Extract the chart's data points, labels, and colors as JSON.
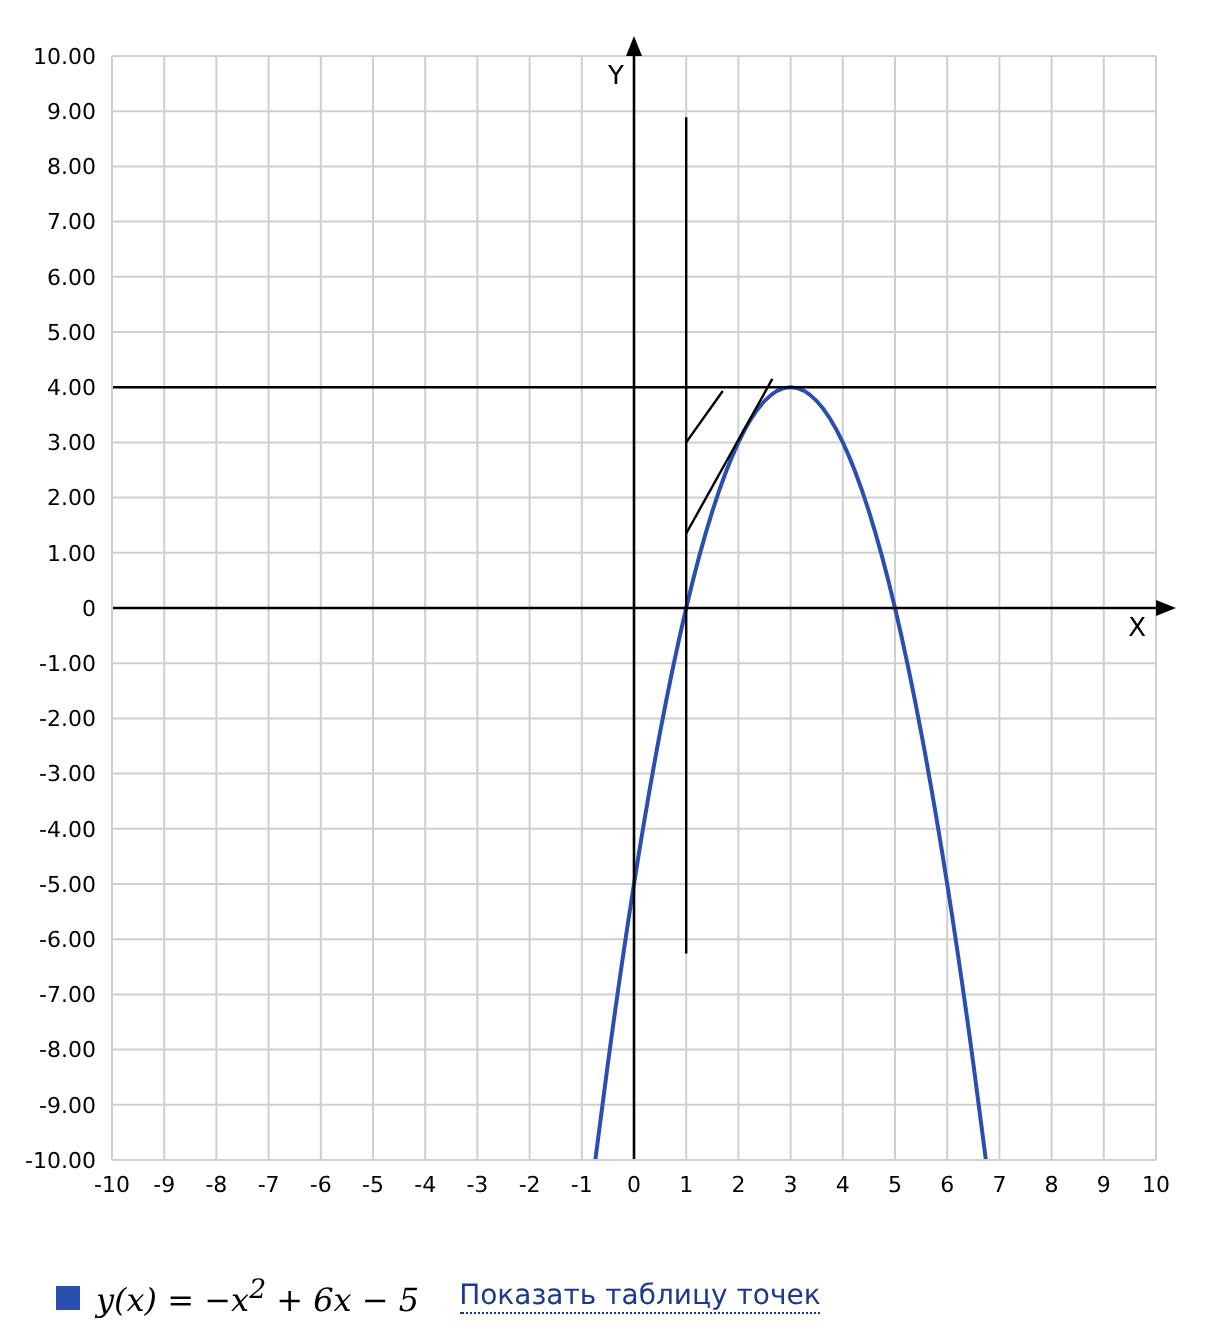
{
  "chart_data": {
    "type": "line",
    "xlabel": "X",
    "ylabel": "Y",
    "xlim": [
      -10,
      10
    ],
    "ylim": [
      -10,
      10
    ],
    "xticks": [
      -10,
      -9,
      -8,
      -7,
      -6,
      -5,
      -4,
      -3,
      -2,
      -1,
      0,
      1,
      2,
      3,
      4,
      5,
      6,
      7,
      8,
      9,
      10
    ],
    "yticks": [
      {
        "value": -10,
        "label": "-10.00"
      },
      {
        "value": -9,
        "label": "-9.00"
      },
      {
        "value": -8,
        "label": "-8.00"
      },
      {
        "value": -7,
        "label": "-7.00"
      },
      {
        "value": -6,
        "label": "-6.00"
      },
      {
        "value": -5,
        "label": "-5.00"
      },
      {
        "value": -4,
        "label": "-4.00"
      },
      {
        "value": -3,
        "label": "-3.00"
      },
      {
        "value": -2,
        "label": "-2.00"
      },
      {
        "value": -1,
        "label": "-1.00"
      },
      {
        "value": 0,
        "label": "0"
      },
      {
        "value": 1,
        "label": "1.00"
      },
      {
        "value": 2,
        "label": "2.00"
      },
      {
        "value": 3,
        "label": "3.00"
      },
      {
        "value": 4,
        "label": "4.00"
      },
      {
        "value": 5,
        "label": "5.00"
      },
      {
        "value": 6,
        "label": "6.00"
      },
      {
        "value": 7,
        "label": "7.00"
      },
      {
        "value": 8,
        "label": "8.00"
      },
      {
        "value": 9,
        "label": "9.00"
      },
      {
        "value": 10,
        "label": "10.00"
      }
    ],
    "grid": true,
    "legend": "bottom",
    "marker": "none",
    "series": [
      {
        "name": "y(x) = −x$^{2}$ + 6x − 5",
        "color": "#2b4fb0",
        "x": [
          -0.74,
          -0.5,
          0,
          0.5,
          1,
          1.5,
          2,
          2.5,
          3,
          3.5,
          4,
          4.5,
          5,
          5.5,
          6,
          6.5,
          6.74
        ],
        "values": [
          -9.99,
          -8.25,
          -5,
          -2.25,
          0,
          1.75,
          3,
          3.75,
          4,
          3.75,
          3,
          1.75,
          0,
          -2.25,
          -5,
          -8.25,
          -9.99
        ]
      },
      {
        "color": "#000000",
        "x": [
          1,
          1.7
        ],
        "values": [
          3,
          3.93
        ]
      },
      {
        "color": "#000000",
        "x": [
          1,
          2.65
        ],
        "values": [
          1.35,
          4.15
        ]
      },
      {
        "color": "#000000",
        "x": [
          1,
          1
        ],
        "values": [
          -6.26,
          8.89
        ]
      },
      {
        "color": "#000000",
        "x": [
          -10,
          10
        ],
        "values": [
          4,
          4
        ]
      }
    ],
    "annotations": [
      "Показать таблицу точек"
    ]
  }
}
